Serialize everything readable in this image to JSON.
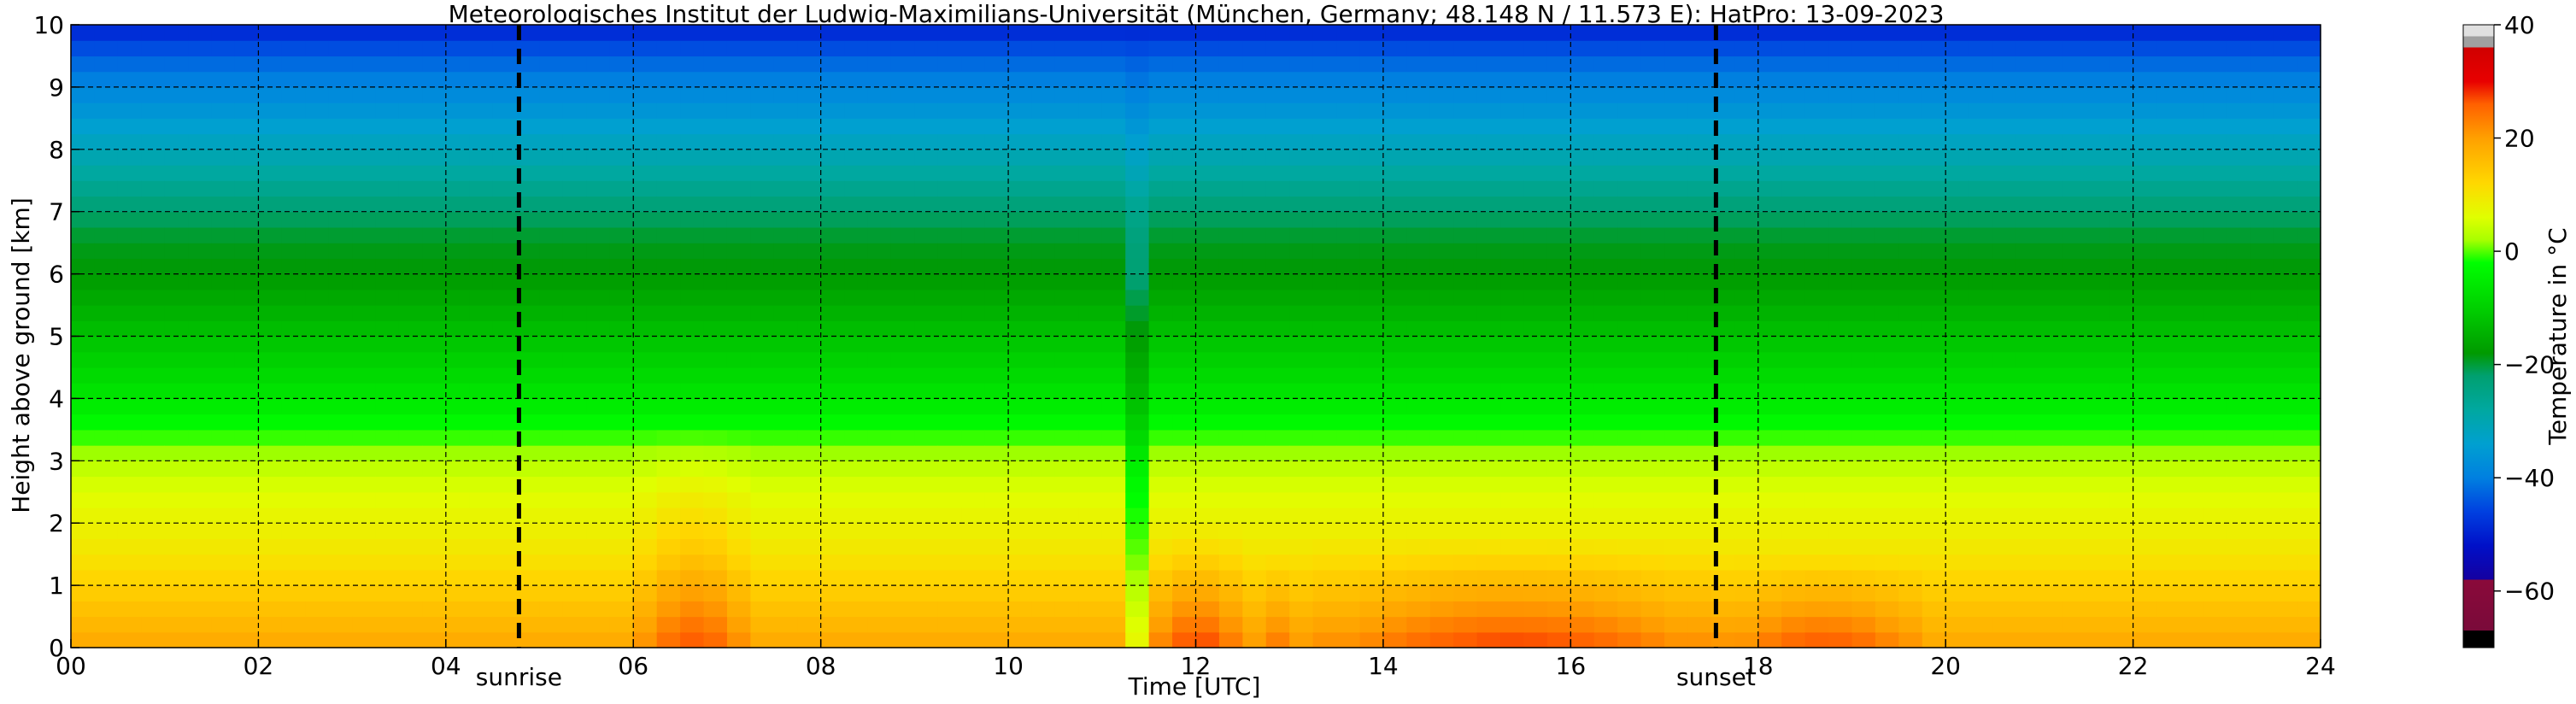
{
  "chart_data": {
    "type": "heatmap",
    "title": "Meteorologisches Institut der Ludwig-Maximilians-Universität (München, Germany; 48.148 N / 11.573 E):    HatPro: 13-09-2023",
    "xlabel": "Time [UTC]",
    "ylabel": "Height above ground [km]",
    "xlim": [
      0,
      24
    ],
    "ylim": [
      0,
      10
    ],
    "x_ticks": [
      "00",
      "02",
      "04",
      "06",
      "08",
      "10",
      "12",
      "14",
      "16",
      "18",
      "20",
      "22",
      "24"
    ],
    "y_ticks": [
      "0",
      "1",
      "2",
      "3",
      "4",
      "5",
      "6",
      "7",
      "8",
      "9",
      "10"
    ],
    "grid": true,
    "events": [
      {
        "label": "sunrise",
        "x": 4.78
      },
      {
        "label": "sunset",
        "x": 17.55
      }
    ],
    "colorbar": {
      "label": "Temperature in °C",
      "range": [
        -70,
        40
      ],
      "ticks": [
        "40",
        "20",
        "0",
        "−20",
        "−40",
        "−60"
      ],
      "tick_values": [
        40,
        20,
        0,
        -20,
        -40,
        -60
      ],
      "stops": [
        {
          "v": -70,
          "color": "#000000"
        },
        {
          "v": -67,
          "color": "#000000"
        },
        {
          "v": -67,
          "color": "#7a0a3a"
        },
        {
          "v": -58,
          "color": "#8a0a3a"
        },
        {
          "v": -58,
          "color": "#1500a0"
        },
        {
          "v": -52,
          "color": "#0010c8"
        },
        {
          "v": -46,
          "color": "#0040e0"
        },
        {
          "v": -40,
          "color": "#0080e0"
        },
        {
          "v": -34,
          "color": "#00a0d0"
        },
        {
          "v": -28,
          "color": "#00a8a0"
        },
        {
          "v": -22,
          "color": "#00a070"
        },
        {
          "v": -18,
          "color": "#009a00"
        },
        {
          "v": -10,
          "color": "#00d000"
        },
        {
          "v": -2,
          "color": "#00ff00"
        },
        {
          "v": 2,
          "color": "#a8ff00"
        },
        {
          "v": 6,
          "color": "#e0ff00"
        },
        {
          "v": 12,
          "color": "#ffd800"
        },
        {
          "v": 20,
          "color": "#ffa000"
        },
        {
          "v": 26,
          "color": "#ff6000"
        },
        {
          "v": 30,
          "color": "#e80000"
        },
        {
          "v": 36,
          "color": "#d00000"
        },
        {
          "v": 36,
          "color": "#a0a0a0"
        },
        {
          "v": 38,
          "color": "#a0a0a0"
        },
        {
          "v": 38,
          "color": "#e0e0e0"
        },
        {
          "v": 40,
          "color": "#e0e0e0"
        }
      ]
    },
    "profile_height_km": [
      0,
      0.5,
      1,
      1.5,
      2,
      2.5,
      3,
      3.5,
      4,
      4.5,
      5,
      5.5,
      6,
      6.5,
      7,
      7.5,
      8,
      8.5,
      9,
      9.5,
      10
    ],
    "profile_temperature_c": [
      19,
      16,
      13,
      10,
      8,
      6,
      3,
      -2,
      -6,
      -9,
      -12,
      -15,
      -18,
      -19,
      -22,
      -27,
      -31,
      -35,
      -39,
      -43,
      -50
    ],
    "anomalies": [
      {
        "x0": 6.0,
        "x1": 7.3,
        "h": 3.6,
        "dT": 8
      },
      {
        "x0": 11.2,
        "x1": 11.45,
        "h": 10.0,
        "dT": -14
      },
      {
        "x0": 11.45,
        "x1": 12.6,
        "h": 2.0,
        "dT": 9
      },
      {
        "x0": 12.6,
        "x1": 13.2,
        "h": 1.6,
        "dT": 5
      },
      {
        "x0": 13.2,
        "x1": 17.6,
        "h": 1.8,
        "dT": 9
      },
      {
        "x0": 17.6,
        "x1": 19.8,
        "h": 1.5,
        "dT": 8
      }
    ]
  }
}
